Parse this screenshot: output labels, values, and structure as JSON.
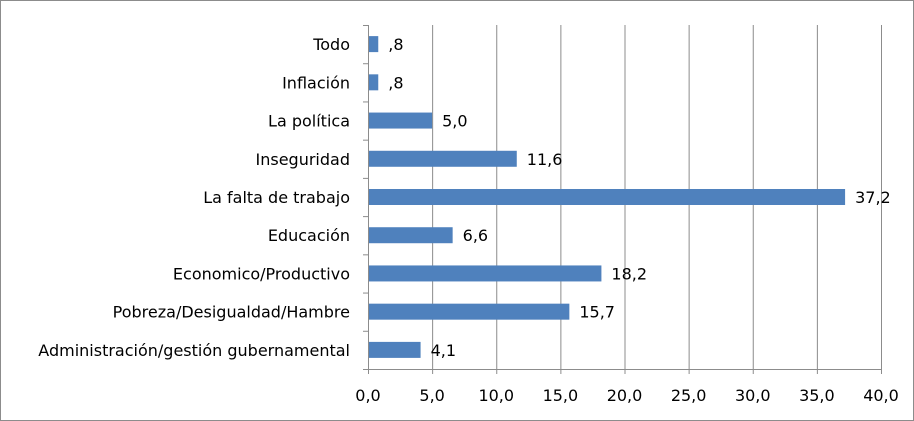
{
  "chart_data": {
    "type": "bar",
    "orientation": "horizontal",
    "categories": [
      "Todo",
      "Inflación",
      "La política",
      "Inseguridad",
      "La falta de trabajo",
      "Educación",
      "Economico/Productivo",
      "Pobreza/Desigualdad/Hambre",
      "Administración/gestión gubernamental"
    ],
    "values": [
      0.8,
      0.8,
      5.0,
      11.6,
      37.2,
      6.6,
      18.2,
      15.7,
      4.1
    ],
    "value_labels": [
      ",8",
      ",8",
      "5,0",
      "11,6",
      "37,2",
      "6,6",
      "18,2",
      "15,7",
      "4,1"
    ],
    "xlim": [
      0,
      40
    ],
    "x_ticks": [
      0,
      5,
      10,
      15,
      20,
      25,
      30,
      35,
      40
    ],
    "x_tick_labels": [
      "0,0",
      "5,0",
      "10,0",
      "15,0",
      "20,0",
      "25,0",
      "30,0",
      "35,0",
      "40,0"
    ],
    "title": "",
    "xlabel": "",
    "ylabel": "",
    "grid": "vertical",
    "legend": "none",
    "bar_color": "#4f81bd",
    "grid_color": "#8c8c8c"
  }
}
